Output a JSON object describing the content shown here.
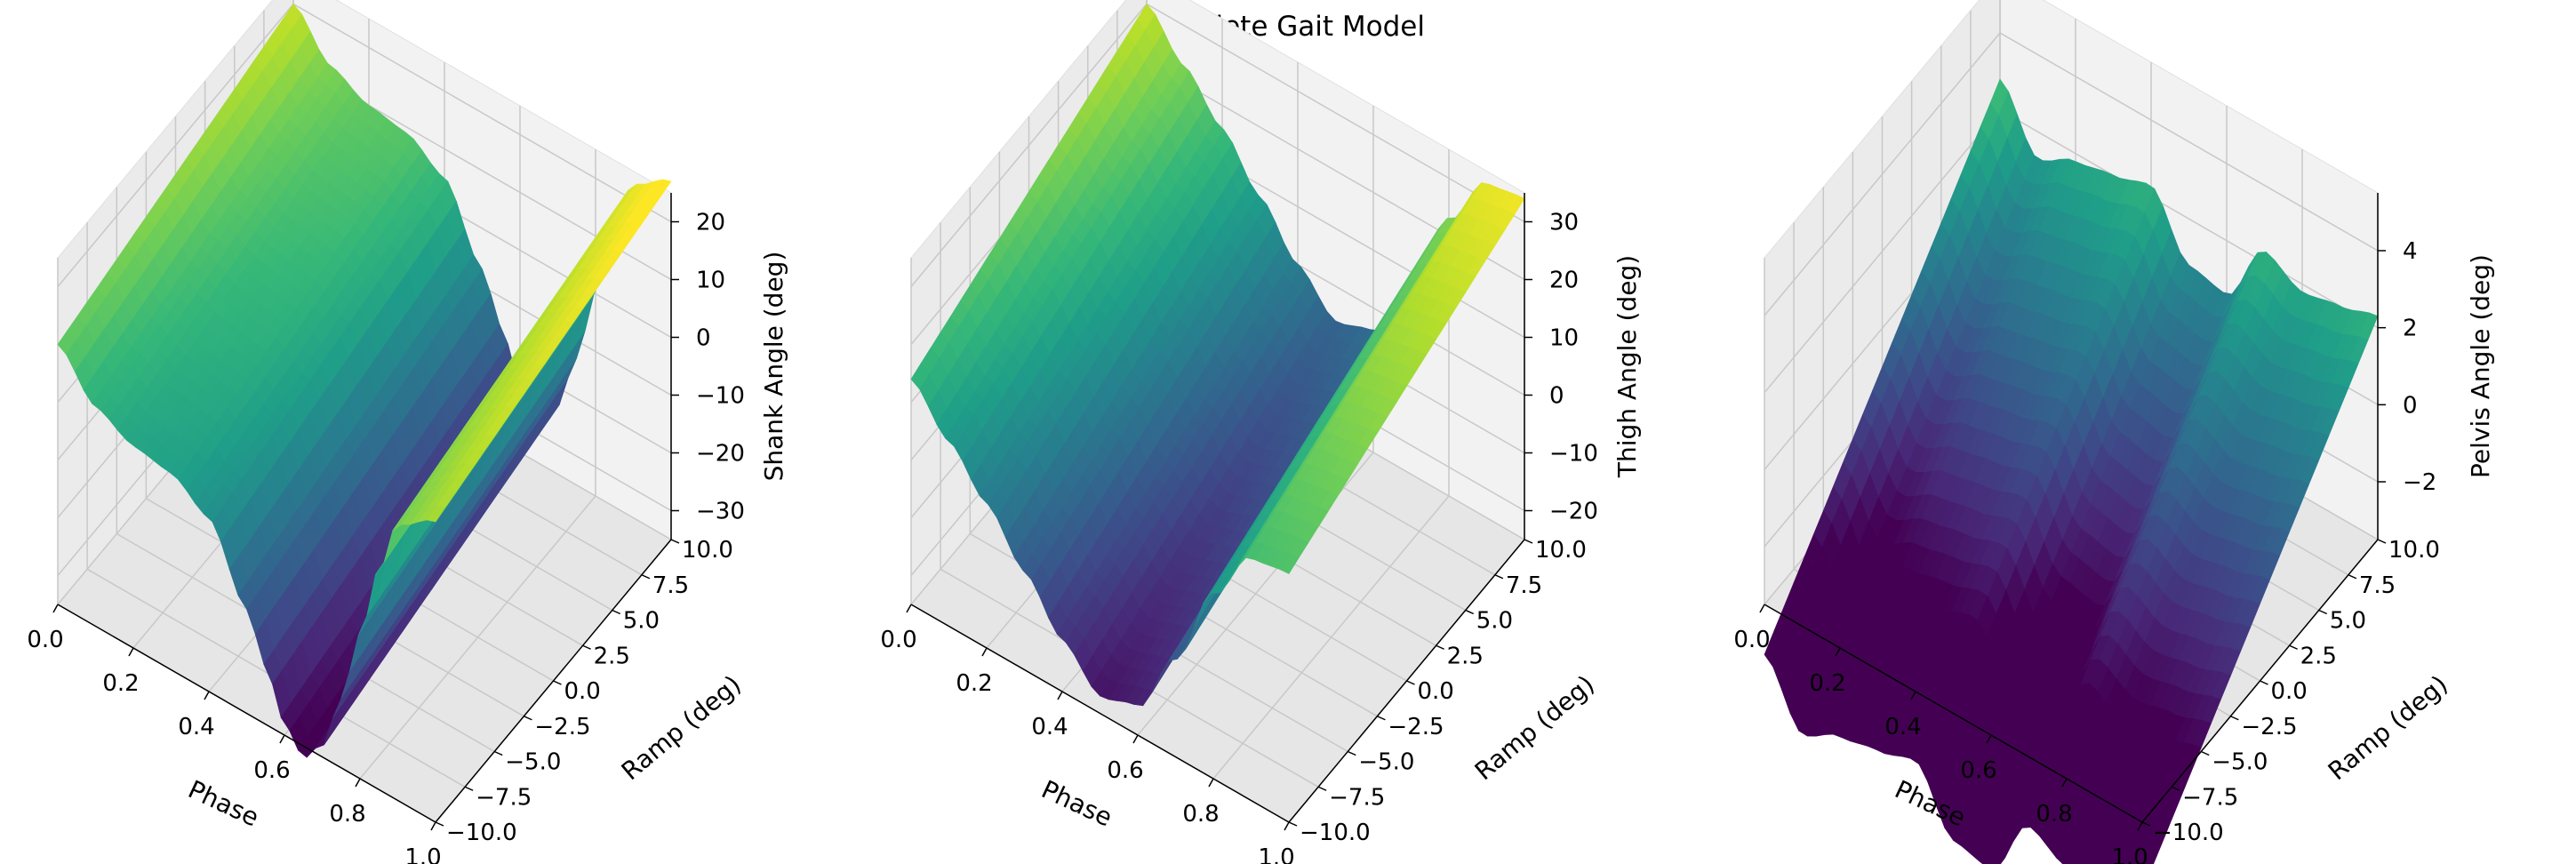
{
  "figure_title": "Complete Gait Model",
  "chart_data": [
    {
      "type": "surface",
      "colormap": "viridis",
      "xlabel": "Phase",
      "ylabel": "Ramp (deg)",
      "zlabel": "Shank Angle (deg)",
      "xlim": [
        0,
        1
      ],
      "ylim": [
        -10,
        10
      ],
      "zlim": [
        -35,
        25
      ],
      "xticks": [
        "0.0",
        "0.2",
        "0.4",
        "0.6",
        "0.8",
        "1.0"
      ],
      "yticks": [
        "−10.0",
        "−7.5",
        "−5.0",
        "−2.5",
        "0.0",
        "2.5",
        "5.0",
        "7.5",
        "10.0"
      ],
      "zticks": [
        "−30",
        "−20",
        "−10",
        "0",
        "10",
        "20"
      ],
      "profile_phase": [
        0.0,
        0.1,
        0.2,
        0.3,
        0.4,
        0.5,
        0.55,
        0.6,
        0.65,
        0.7,
        0.75,
        0.8,
        0.85,
        0.9,
        1.0
      ],
      "profile_angle": [
        15,
        8,
        5,
        4,
        0,
        -12,
        -20,
        -28,
        -32,
        -28,
        -18,
        -5,
        8,
        18,
        22
      ],
      "ramp_gain": 0.5
    },
    {
      "type": "surface",
      "colormap": "viridis",
      "xlabel": "Phase",
      "ylabel": "Ramp (deg)",
      "zlabel": "Thigh Angle (deg)",
      "xlim": [
        0,
        1
      ],
      "ylim": [
        -10,
        10
      ],
      "zlim": [
        -25,
        35
      ],
      "xticks": [
        "0.0",
        "0.2",
        "0.4",
        "0.6",
        "0.8",
        "1.0"
      ],
      "yticks": [
        "−10.0",
        "−7.5",
        "−5.0",
        "−2.5",
        "0.0",
        "2.5",
        "5.0",
        "7.5",
        "10.0"
      ],
      "zticks": [
        "−20",
        "−10",
        "0",
        "10",
        "20",
        "30"
      ],
      "profile_phase": [
        0.0,
        0.1,
        0.2,
        0.3,
        0.4,
        0.5,
        0.6,
        0.7,
        0.8,
        0.9,
        1.0
      ],
      "profile_angle": [
        22,
        15,
        8,
        0,
        -8,
        -14,
        -12,
        0,
        15,
        25,
        26
      ],
      "ramp_gain": 0.8
    },
    {
      "type": "surface",
      "colormap": "viridis",
      "xlabel": "Phase",
      "ylabel": "Ramp (deg)",
      "zlabel": "Pelvis Angle (deg)",
      "xlim": [
        0,
        1
      ],
      "ylim": [
        -10,
        10
      ],
      "zlim": [
        -3.5,
        5.5
      ],
      "xticks": [
        "0.0",
        "0.2",
        "0.4",
        "0.6",
        "0.8",
        "1.0"
      ],
      "yticks": [
        "−10.0",
        "−7.5",
        "−5.0",
        "−2.5",
        "0.0",
        "2.5",
        "5.0",
        "7.5",
        "10.0"
      ],
      "zticks": [
        "−2",
        "0",
        "2",
        "4"
      ],
      "profile_phase": [
        0.0,
        0.1,
        0.2,
        0.3,
        0.4,
        0.5,
        0.6,
        0.7,
        0.8,
        0.9,
        1.0
      ],
      "profile_angle": [
        -1.0,
        -2.5,
        -2.0,
        -1.8,
        -1.5,
        -3.0,
        -3.2,
        -1.5,
        -2.0,
        -1.8,
        -1.5
      ],
      "ramp_gain": 0.38
    }
  ]
}
